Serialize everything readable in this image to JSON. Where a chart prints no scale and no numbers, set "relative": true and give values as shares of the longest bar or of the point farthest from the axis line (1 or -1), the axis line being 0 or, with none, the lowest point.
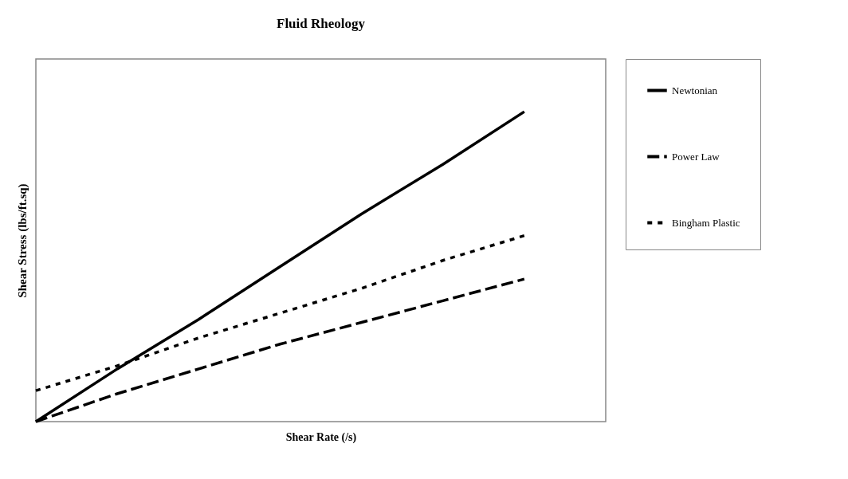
{
  "chart_data": {
    "type": "line",
    "title": "Fluid Rheology",
    "xlabel": "Shear Rate (/s)",
    "ylabel": "Shear Stress (lbs/ft.sq)",
    "relative": true,
    "tick_labels": false,
    "legend": "right",
    "grid": false,
    "marker": "none",
    "categories": [
      null,
      null,
      null,
      null,
      null,
      null,
      null,
      null
    ],
    "series": [
      {
        "name": "Newtonian",
        "color": "#000000",
        "line_style": "solid",
        "values": [
          0,
          0.17,
          0.33,
          0.5,
          0.67,
          0.83,
          1,
          null
        ]
      },
      {
        "name": "Power Law",
        "color": "#000000",
        "line_style": "dashed",
        "values": [
          0,
          0.09,
          0.17,
          0.25,
          0.32,
          0.39,
          0.46,
          null
        ]
      },
      {
        "name": "Bingham Plastic",
        "color": "#000000",
        "line_style": "dotted",
        "values": [
          0.1,
          0.18,
          0.27,
          0.35,
          0.43,
          0.52,
          0.6,
          null
        ]
      }
    ]
  }
}
